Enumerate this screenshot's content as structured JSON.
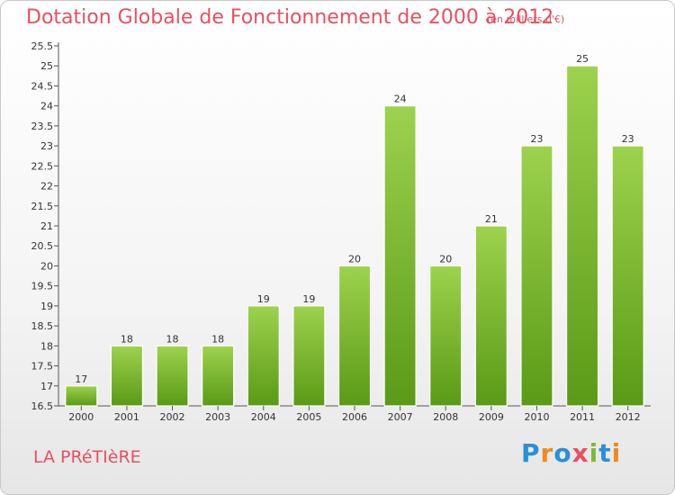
{
  "chart_data": {
    "type": "bar",
    "title": "Dotation Globale de Fonctionnement de 2000 à 2012",
    "subtitle": "(en milliers d'€)",
    "categories": [
      "2000",
      "2001",
      "2002",
      "2003",
      "2004",
      "2005",
      "2006",
      "2007",
      "2008",
      "2009",
      "2010",
      "2011",
      "2012"
    ],
    "values": [
      17,
      18,
      18,
      18,
      19,
      19,
      20,
      24,
      20,
      21,
      23,
      25,
      23
    ],
    "xlabel": "",
    "ylabel": "",
    "ylim": [
      16.5,
      25.5
    ],
    "yticks": [
      "16.5",
      "17",
      "17.5",
      "18",
      "18.5",
      "19",
      "19.5",
      "20",
      "20.5",
      "21",
      "21.5",
      "22",
      "22.5",
      "23",
      "23.5",
      "24",
      "24.5",
      "25",
      "25.5"
    ],
    "grid": false,
    "bar_color": "#7dbb33"
  },
  "footer": {
    "commune": "LA PRéTIèRE",
    "logo": [
      {
        "char": "P",
        "color": "#2a8fd6"
      },
      {
        "char": "r",
        "color": "#f08a1c"
      },
      {
        "char": "o",
        "color": "#2a8fd6"
      },
      {
        "char": "x",
        "color": "#e8505f"
      },
      {
        "char": "i",
        "color": "#7dbb33"
      },
      {
        "char": "t",
        "color": "#2a8fd6"
      },
      {
        "char": "i",
        "color": "#f08a1c"
      }
    ]
  }
}
